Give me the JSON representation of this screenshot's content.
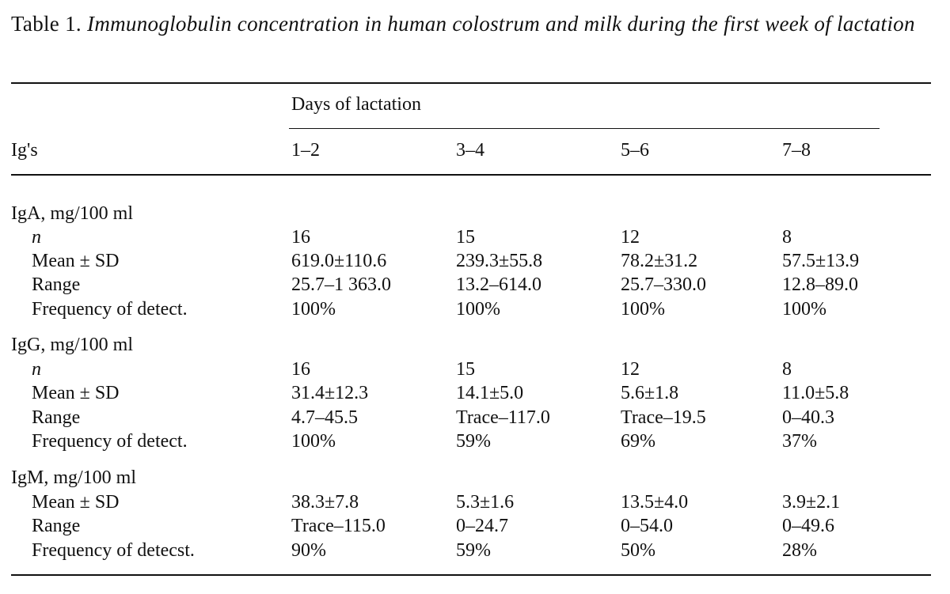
{
  "caption": {
    "label": "Table 1.",
    "title": "Immunoglobulin concentration in human colostrum and milk during the first week of lactation"
  },
  "header": {
    "row_header": "Ig's",
    "span_label": "Days of lactation",
    "columns": [
      "1–2",
      "3–4",
      "5–6",
      "7–8"
    ]
  },
  "groups": [
    {
      "label": "IgA, mg/100 ml",
      "rows": [
        {
          "label": "n",
          "values": [
            "16",
            "15",
            "12",
            "8"
          ]
        },
        {
          "label": "Mean ± SD",
          "values": [
            "619.0±110.6",
            "239.3±55.8",
            "78.2±31.2",
            "57.5±13.9"
          ]
        },
        {
          "label": "Range",
          "values": [
            "25.7–1 363.0",
            "13.2–614.0",
            "25.7–330.0",
            "12.8–89.0"
          ]
        },
        {
          "label": "Frequency of detect.",
          "values": [
            "100%",
            "100%",
            "100%",
            "100%"
          ]
        }
      ]
    },
    {
      "label": "IgG, mg/100 ml",
      "rows": [
        {
          "label": "n",
          "values": [
            "16",
            "15",
            "12",
            "8"
          ]
        },
        {
          "label": "Mean ± SD",
          "values": [
            "31.4±12.3",
            "14.1±5.0",
            "5.6±1.8",
            "11.0±5.8"
          ]
        },
        {
          "label": "Range",
          "values": [
            "4.7–45.5",
            "Trace–117.0",
            "Trace–19.5",
            "0–40.3"
          ]
        },
        {
          "label": "Frequency of detect.",
          "values": [
            "100%",
            "59%",
            "69%",
            "37%"
          ]
        }
      ]
    },
    {
      "label": "IgM, mg/100 ml",
      "rows": [
        {
          "label": "Mean ± SD",
          "values": [
            "38.3±7.8",
            "5.3±1.6",
            "13.5±4.0",
            "3.9±2.1"
          ]
        },
        {
          "label": "Range",
          "values": [
            "Trace–115.0",
            "0–24.7",
            "0–54.0",
            "0–49.6"
          ]
        },
        {
          "label": "Frequency of detecst.",
          "values": [
            "90%",
            "59%",
            "50%",
            "28%"
          ]
        }
      ]
    }
  ]
}
